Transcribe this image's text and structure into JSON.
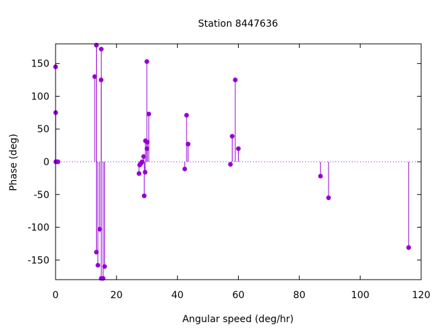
{
  "chart_data": {
    "type": "scatter",
    "style": "impulses-with-points",
    "title": "Station 8447636",
    "xlabel": "Angular speed (deg/hr)",
    "ylabel": "Phase (deg)",
    "xlim": [
      0,
      120
    ],
    "ylim": [
      -180,
      180
    ],
    "xticks": [
      0,
      20,
      40,
      60,
      80,
      100,
      120
    ],
    "yticks": [
      -150,
      -100,
      -50,
      0,
      50,
      100,
      150
    ],
    "zero_line": "dotted",
    "grid": false,
    "legend": "none",
    "color": "#9400d3",
    "points": [
      {
        "x": 0.0,
        "y": 145
      },
      {
        "x": 0.04,
        "y": 75
      },
      {
        "x": 0.08,
        "y": 0
      },
      {
        "x": 0.5,
        "y": 0
      },
      {
        "x": 0.8,
        "y": 0
      },
      {
        "x": 12.85,
        "y": 130
      },
      {
        "x": 13.4,
        "y": -138
      },
      {
        "x": 13.4,
        "y": 178
      },
      {
        "x": 13.9,
        "y": -158
      },
      {
        "x": 14.5,
        "y": -103
      },
      {
        "x": 14.96,
        "y": 125
      },
      {
        "x": 15.0,
        "y": 172
      },
      {
        "x": 15.0,
        "y": -178
      },
      {
        "x": 15.6,
        "y": -178
      },
      {
        "x": 16.1,
        "y": -160
      },
      {
        "x": 27.4,
        "y": -18
      },
      {
        "x": 27.6,
        "y": -5
      },
      {
        "x": 28.0,
        "y": -3
      },
      {
        "x": 28.4,
        "y": 0
      },
      {
        "x": 28.9,
        "y": 8
      },
      {
        "x": 29.1,
        "y": -52
      },
      {
        "x": 29.4,
        "y": -16
      },
      {
        "x": 29.5,
        "y": 32
      },
      {
        "x": 29.96,
        "y": 153
      },
      {
        "x": 30.0,
        "y": 20
      },
      {
        "x": 30.1,
        "y": 30
      },
      {
        "x": 30.6,
        "y": 73
      },
      {
        "x": 42.4,
        "y": -11
      },
      {
        "x": 43.0,
        "y": 71
      },
      {
        "x": 43.5,
        "y": 27
      },
      {
        "x": 57.4,
        "y": -4
      },
      {
        "x": 57.97,
        "y": 39
      },
      {
        "x": 58.98,
        "y": 125
      },
      {
        "x": 60.0,
        "y": 20
      },
      {
        "x": 86.95,
        "y": -22
      },
      {
        "x": 89.6,
        "y": -55
      },
      {
        "x": 115.9,
        "y": -131
      }
    ]
  }
}
